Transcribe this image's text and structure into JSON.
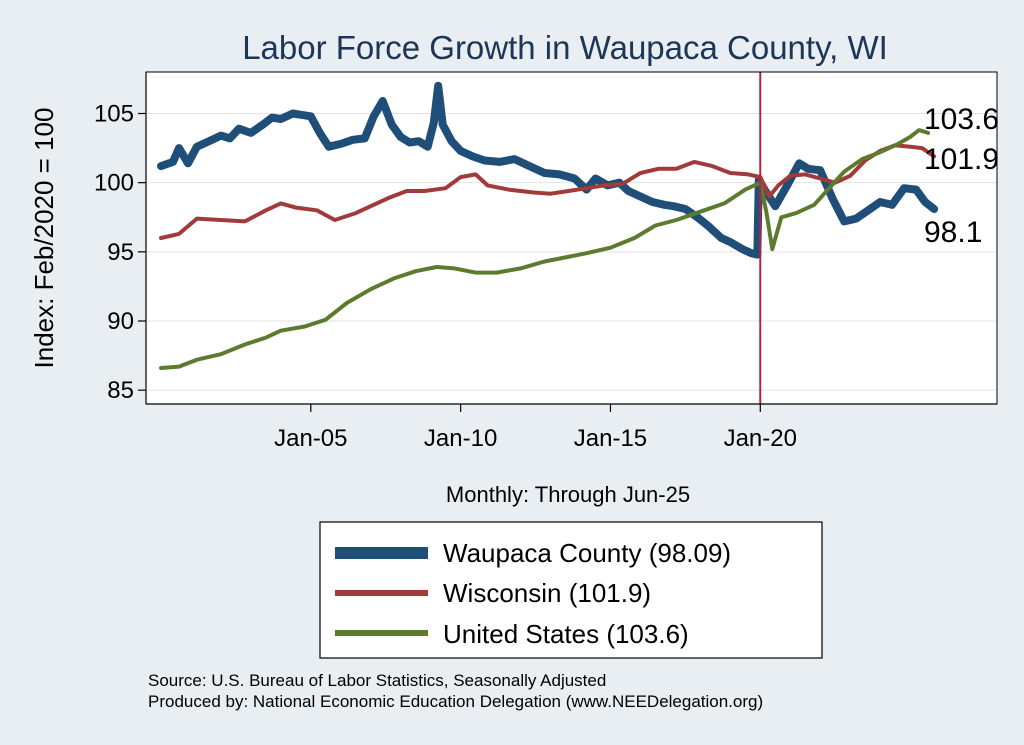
{
  "chart_data": {
    "type": "line",
    "title": "Labor Force Growth in Waupaca  County, WI",
    "xlabel": "Monthly: Through Jun-25",
    "ylabel": "Index: Feb/2020 = 100",
    "ylim": [
      84,
      108
    ],
    "yticks": [
      85,
      90,
      95,
      100,
      105
    ],
    "xlim": [
      1999.5,
      2027.9
    ],
    "xticks": [
      {
        "value": 2005,
        "label": "Jan-05"
      },
      {
        "value": 2010,
        "label": "Jan-10"
      },
      {
        "value": 2015,
        "label": "Jan-15"
      },
      {
        "value": 2020,
        "label": "Jan-20"
      }
    ],
    "reference_line": {
      "x": 2020.0,
      "color": "#b3243f"
    },
    "end_labels": [
      "103.6",
      "101.9",
      "98.1"
    ],
    "grid": true,
    "series": [
      {
        "name": "Waupaca  County",
        "legend": "Waupaca  County (98.09)",
        "color": "#1f4e79",
        "width": 8,
        "points": [
          [
            2000.0,
            101.2
          ],
          [
            2000.4,
            101.5
          ],
          [
            2000.6,
            102.5
          ],
          [
            2000.9,
            101.4
          ],
          [
            2001.2,
            102.6
          ],
          [
            2001.6,
            103.0
          ],
          [
            2002.0,
            103.4
          ],
          [
            2002.3,
            103.2
          ],
          [
            2002.6,
            103.9
          ],
          [
            2003.0,
            103.6
          ],
          [
            2003.4,
            104.2
          ],
          [
            2003.7,
            104.7
          ],
          [
            2004.0,
            104.6
          ],
          [
            2004.4,
            105.0
          ],
          [
            2004.7,
            104.9
          ],
          [
            2005.0,
            104.8
          ],
          [
            2005.3,
            103.6
          ],
          [
            2005.6,
            102.6
          ],
          [
            2006.0,
            102.8
          ],
          [
            2006.4,
            103.1
          ],
          [
            2006.8,
            103.2
          ],
          [
            2007.1,
            104.8
          ],
          [
            2007.4,
            105.9
          ],
          [
            2007.7,
            104.2
          ],
          [
            2008.0,
            103.3
          ],
          [
            2008.3,
            102.9
          ],
          [
            2008.6,
            103.0
          ],
          [
            2008.9,
            102.6
          ],
          [
            2009.1,
            104.3
          ],
          [
            2009.25,
            107.0
          ],
          [
            2009.4,
            104.2
          ],
          [
            2009.7,
            103.0
          ],
          [
            2010.0,
            102.3
          ],
          [
            2010.4,
            101.9
          ],
          [
            2010.8,
            101.6
          ],
          [
            2011.3,
            101.5
          ],
          [
            2011.8,
            101.7
          ],
          [
            2012.3,
            101.2
          ],
          [
            2012.8,
            100.7
          ],
          [
            2013.3,
            100.6
          ],
          [
            2013.8,
            100.3
          ],
          [
            2014.2,
            99.5
          ],
          [
            2014.5,
            100.3
          ],
          [
            2014.9,
            99.8
          ],
          [
            2015.3,
            100.0
          ],
          [
            2015.6,
            99.4
          ],
          [
            2016.0,
            99.0
          ],
          [
            2016.4,
            98.6
          ],
          [
            2016.8,
            98.4
          ],
          [
            2017.1,
            98.3
          ],
          [
            2017.5,
            98.1
          ],
          [
            2017.9,
            97.5
          ],
          [
            2018.3,
            96.8
          ],
          [
            2018.7,
            96.0
          ],
          [
            2019.0,
            95.7
          ],
          [
            2019.4,
            95.2
          ],
          [
            2019.7,
            94.9
          ],
          [
            2019.9,
            94.8
          ],
          [
            2019.95,
            100.2
          ],
          [
            2020.2,
            99.3
          ],
          [
            2020.5,
            98.3
          ],
          [
            2020.9,
            99.8
          ],
          [
            2021.3,
            101.4
          ],
          [
            2021.6,
            101.0
          ],
          [
            2022.0,
            100.9
          ],
          [
            2022.4,
            98.9
          ],
          [
            2022.8,
            97.2
          ],
          [
            2023.2,
            97.4
          ],
          [
            2023.6,
            98.0
          ],
          [
            2024.0,
            98.6
          ],
          [
            2024.4,
            98.4
          ],
          [
            2024.8,
            99.6
          ],
          [
            2025.2,
            99.5
          ],
          [
            2025.5,
            98.6
          ],
          [
            2025.8,
            98.1
          ]
        ]
      },
      {
        "name": "Wisconsin",
        "legend": "Wisconsin (101.9)",
        "color": "#a33a3a",
        "width": 4,
        "points": [
          [
            2000.0,
            96.0
          ],
          [
            2000.6,
            96.3
          ],
          [
            2001.2,
            97.4
          ],
          [
            2002.0,
            97.3
          ],
          [
            2002.8,
            97.2
          ],
          [
            2003.5,
            98.0
          ],
          [
            2004.0,
            98.5
          ],
          [
            2004.5,
            98.2
          ],
          [
            2005.2,
            98.0
          ],
          [
            2005.8,
            97.3
          ],
          [
            2006.5,
            97.8
          ],
          [
            2007.0,
            98.3
          ],
          [
            2007.6,
            98.9
          ],
          [
            2008.2,
            99.4
          ],
          [
            2008.8,
            99.4
          ],
          [
            2009.5,
            99.6
          ],
          [
            2010.0,
            100.4
          ],
          [
            2010.5,
            100.6
          ],
          [
            2010.9,
            99.8
          ],
          [
            2011.6,
            99.5
          ],
          [
            2012.4,
            99.3
          ],
          [
            2013.0,
            99.2
          ],
          [
            2013.6,
            99.4
          ],
          [
            2014.2,
            99.6
          ],
          [
            2014.8,
            99.8
          ],
          [
            2015.4,
            99.9
          ],
          [
            2016.0,
            100.7
          ],
          [
            2016.6,
            101.0
          ],
          [
            2017.2,
            101.0
          ],
          [
            2017.8,
            101.5
          ],
          [
            2018.4,
            101.2
          ],
          [
            2019.0,
            100.7
          ],
          [
            2019.6,
            100.6
          ],
          [
            2020.0,
            100.4
          ],
          [
            2020.3,
            99.0
          ],
          [
            2020.6,
            99.8
          ],
          [
            2021.0,
            100.5
          ],
          [
            2021.5,
            100.6
          ],
          [
            2022.0,
            100.3
          ],
          [
            2022.5,
            100.0
          ],
          [
            2023.0,
            100.5
          ],
          [
            2023.5,
            101.6
          ],
          [
            2024.0,
            102.3
          ],
          [
            2024.5,
            102.7
          ],
          [
            2025.0,
            102.6
          ],
          [
            2025.4,
            102.5
          ],
          [
            2025.8,
            101.9
          ]
        ]
      },
      {
        "name": "United States",
        "legend": "United States (103.6)",
        "color": "#5d7b2e",
        "width": 4,
        "points": [
          [
            2000.0,
            86.6
          ],
          [
            2000.6,
            86.7
          ],
          [
            2001.2,
            87.2
          ],
          [
            2002.0,
            87.6
          ],
          [
            2002.8,
            88.3
          ],
          [
            2003.5,
            88.8
          ],
          [
            2004.0,
            89.3
          ],
          [
            2004.8,
            89.6
          ],
          [
            2005.5,
            90.1
          ],
          [
            2006.2,
            91.3
          ],
          [
            2007.0,
            92.3
          ],
          [
            2007.8,
            93.1
          ],
          [
            2008.5,
            93.6
          ],
          [
            2009.2,
            93.9
          ],
          [
            2009.8,
            93.8
          ],
          [
            2010.5,
            93.5
          ],
          [
            2011.2,
            93.5
          ],
          [
            2012.0,
            93.8
          ],
          [
            2012.8,
            94.3
          ],
          [
            2013.5,
            94.6
          ],
          [
            2014.2,
            94.9
          ],
          [
            2015.0,
            95.3
          ],
          [
            2015.8,
            96.0
          ],
          [
            2016.5,
            96.9
          ],
          [
            2017.2,
            97.3
          ],
          [
            2018.0,
            97.9
          ],
          [
            2018.8,
            98.5
          ],
          [
            2019.5,
            99.5
          ],
          [
            2020.0,
            100.0
          ],
          [
            2020.2,
            97.9
          ],
          [
            2020.4,
            95.2
          ],
          [
            2020.7,
            97.5
          ],
          [
            2021.2,
            97.8
          ],
          [
            2021.8,
            98.4
          ],
          [
            2022.3,
            99.6
          ],
          [
            2022.8,
            100.8
          ],
          [
            2023.4,
            101.7
          ],
          [
            2024.0,
            102.2
          ],
          [
            2024.6,
            102.8
          ],
          [
            2025.0,
            103.3
          ],
          [
            2025.3,
            103.8
          ],
          [
            2025.6,
            103.6
          ]
        ]
      }
    ]
  },
  "source_lines": [
    "Source: U.S. Bureau of Labor Statistics, Seasonally Adjusted",
    "Produced by: National Economic Education Delegation (www.NEEDelegation.org)"
  ]
}
